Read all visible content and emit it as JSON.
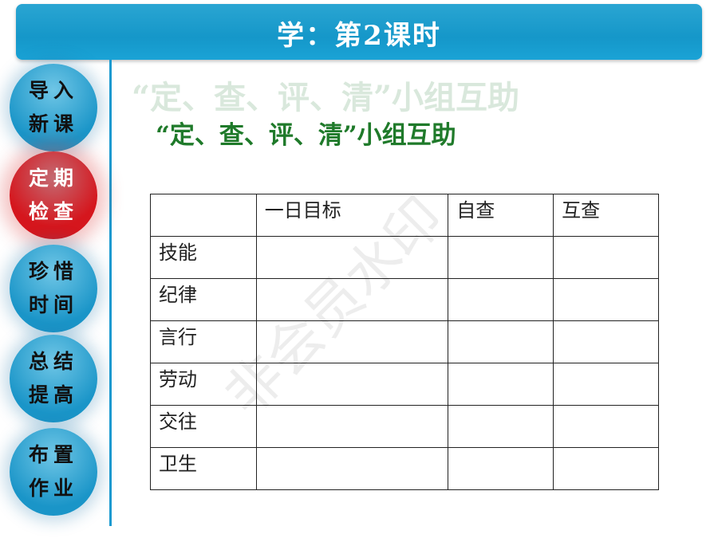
{
  "header": {
    "title": "学：第2课时"
  },
  "nav": [
    {
      "line1": "导入",
      "line2": "新课",
      "active": false
    },
    {
      "line1": "定期",
      "line2": "检查",
      "active": true
    },
    {
      "line1": "珍惜",
      "line2": "时间",
      "active": false
    },
    {
      "line1": "总结",
      "line2": "提高",
      "active": false
    },
    {
      "line1": "布置",
      "line2": "作业",
      "active": false
    }
  ],
  "main": {
    "title": "“定、查、评、清”小组互助"
  },
  "table": {
    "headers": [
      "",
      "一日目标",
      "自查",
      "互查"
    ],
    "rows": [
      "技能",
      "纪律",
      "言行",
      "劳动",
      "交往",
      "卫生"
    ]
  },
  "watermark": "非会员水印",
  "colors": {
    "header": "#1597c9",
    "active_nav": "#d5161d",
    "title": "#1f7a2a"
  }
}
